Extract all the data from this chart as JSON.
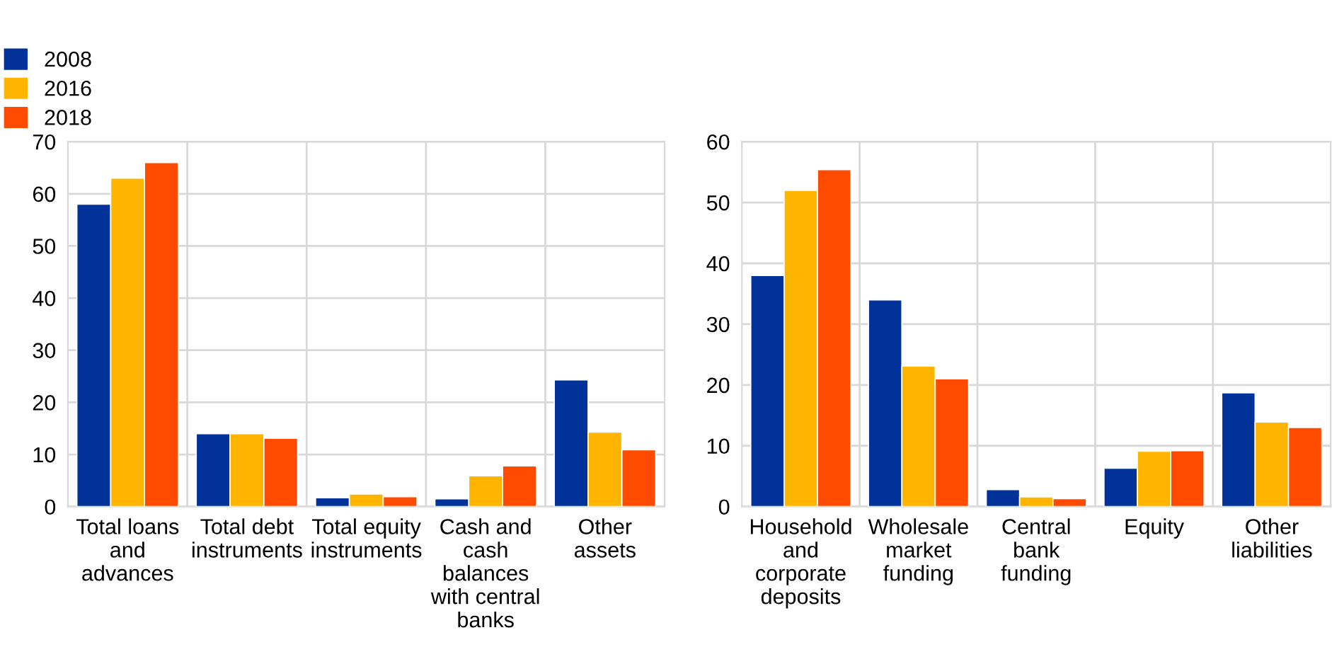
{
  "chart_data": [
    {
      "type": "bar",
      "categories": [
        "Total loans\nand\nadvances",
        "Total debt\ninstruments",
        "Total equity\ninstruments",
        "Cash and\ncash\nbalances\nwith central\nbanks",
        "Other\nassets"
      ],
      "series": [
        {
          "name": "2008",
          "color": "#003299",
          "values": [
            58,
            14.0,
            1.7,
            1.5,
            24.3
          ]
        },
        {
          "name": "2016",
          "color": "#ffb400",
          "values": [
            63,
            14.0,
            2.4,
            5.9,
            14.3
          ]
        },
        {
          "name": "2018",
          "color": "#ff4b00",
          "values": [
            66,
            13.1,
            1.9,
            7.8,
            10.9
          ]
        }
      ],
      "ylim": [
        0,
        70
      ],
      "yticks": [
        0,
        10,
        20,
        30,
        40,
        50,
        60,
        70
      ],
      "grid": true,
      "legend": "top left"
    },
    {
      "type": "bar",
      "categories": [
        "Household\nand\ncorporate\ndeposits",
        "Wholesale\nmarket\nfunding",
        "Central\nbank\nfunding",
        "Equity",
        "Other\nliabilities"
      ],
      "series": [
        {
          "color": "#003299",
          "values": [
            38.0,
            34.0,
            2.8,
            6.3,
            18.7
          ]
        },
        {
          "color": "#ffb400",
          "values": [
            52.0,
            23.1,
            1.6,
            9.1,
            13.9
          ]
        },
        {
          "color": "#ff4b00",
          "values": [
            55.4,
            21.0,
            1.3,
            9.2,
            13.0
          ]
        }
      ],
      "ylim": [
        0,
        60
      ],
      "yticks": [
        0,
        10,
        20,
        30,
        40,
        50,
        60
      ],
      "grid": true
    }
  ]
}
